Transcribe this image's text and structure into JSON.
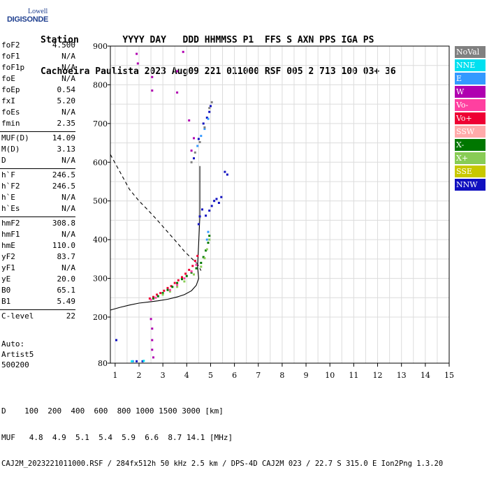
{
  "logo": {
    "line1": "Lowell",
    "line2": "DIGISONDE"
  },
  "header": {
    "line1": "Station        YYYY DAY   DDD HHMMSS P1  FFS S AXN PPS IGA PS",
    "line2": "Cachoeira Paulista 2023 Aug09 221 011000 RSF 005 2 713 100 03+ 36"
  },
  "params": [
    {
      "label": "foF2",
      "value": "4.500"
    },
    {
      "label": "foF1",
      "value": "N/A"
    },
    {
      "label": "foF1p",
      "value": "N/A"
    },
    {
      "label": "foE",
      "value": "N/A"
    },
    {
      "label": "foEp",
      "value": "0.54"
    },
    {
      "label": "fxI",
      "value": "5.20"
    },
    {
      "label": "foEs",
      "value": "N/A"
    },
    {
      "label": "fmin",
      "value": "2.35"
    },
    {
      "label": "MUF(D)",
      "value": "14.09"
    },
    {
      "label": "M(D)",
      "value": "3.13"
    },
    {
      "label": "D",
      "value": "N/A"
    },
    {
      "label": "h`F",
      "value": "246.5"
    },
    {
      "label": "h`F2",
      "value": "246.5"
    },
    {
      "label": "h`E",
      "value": "N/A"
    },
    {
      "label": "h`Es",
      "value": "N/A"
    },
    {
      "label": "hmF2",
      "value": "308.8"
    },
    {
      "label": "hmF1",
      "value": "N/A"
    },
    {
      "label": "hmE",
      "value": "110.0"
    },
    {
      "label": "yF2",
      "value": "83.7"
    },
    {
      "label": "yF1",
      "value": "N/A"
    },
    {
      "label": "yE",
      "value": "20.0"
    },
    {
      "label": "B0",
      "value": "65.1"
    },
    {
      "label": "B1",
      "value": "5.49"
    },
    {
      "label": "C-level",
      "value": "22"
    }
  ],
  "auto": {
    "line1": "Auto:",
    "line2": "Artist5",
    "line3": "500200"
  },
  "legend": [
    {
      "label": "NoVal",
      "color": "#808080"
    },
    {
      "label": "NNE",
      "color": "#00e0f0"
    },
    {
      "label": "E",
      "color": "#3399ff"
    },
    {
      "label": "W",
      "color": "#b000b0"
    },
    {
      "label": "Vo-",
      "color": "#ff40a0"
    },
    {
      "label": "Vo+",
      "color": "#ee0033"
    },
    {
      "label": "SSW",
      "color": "#ffaaaa"
    },
    {
      "label": "X-",
      "color": "#007700"
    },
    {
      "label": "X+",
      "color": "#88cc55"
    },
    {
      "label": "SSE",
      "color": "#c8c800"
    },
    {
      "label": "NNW",
      "color": "#1010c0"
    }
  ],
  "footer": {
    "line1": "D    100  200  400  600  800 1000 1500 3000 [km]",
    "line2": "MUF   4.8  4.9  5.1  5.4  5.9  6.6  8.7 14.1 [MHz]",
    "line3": "CAJ2M_2023221011000.RSF / 284fx512h 50 kHz 2.5 km / DPS-4D CAJ2M 023 / 22.7 S 315.0 E Ion2Png 1.3.20"
  },
  "chart_data": {
    "type": "scatter",
    "xlabel": "",
    "ylabel": "",
    "xlim": [
      0.8,
      15
    ],
    "ylim": [
      80,
      900
    ],
    "xticks": [
      1,
      2,
      3,
      4,
      5,
      6,
      7,
      8,
      9,
      10,
      11,
      12,
      13,
      14,
      15
    ],
    "yticks": [
      80,
      200,
      300,
      400,
      500,
      600,
      700,
      800,
      900
    ],
    "grid": true,
    "legend_position": "right",
    "series": [
      {
        "color": "#ee0033",
        "points": [
          [
            2.45,
            248
          ],
          [
            2.6,
            252
          ],
          [
            2.75,
            258
          ],
          [
            2.9,
            262
          ],
          [
            3.05,
            268
          ],
          [
            3.2,
            275
          ],
          [
            3.35,
            280
          ],
          [
            3.5,
            288
          ],
          [
            3.65,
            295
          ],
          [
            3.8,
            303
          ],
          [
            3.95,
            312
          ],
          [
            4.1,
            322
          ],
          [
            4.25,
            332
          ],
          [
            4.35,
            345
          ],
          [
            4.45,
            358
          ]
        ]
      },
      {
        "color": "#007700",
        "points": [
          [
            2.6,
            248
          ],
          [
            2.8,
            254
          ],
          [
            3.0,
            262
          ],
          [
            3.2,
            270
          ],
          [
            3.4,
            278
          ],
          [
            3.6,
            288
          ],
          [
            3.8,
            298
          ],
          [
            4.0,
            306
          ],
          [
            4.2,
            315
          ],
          [
            4.4,
            326
          ],
          [
            4.6,
            340
          ],
          [
            4.7,
            355
          ],
          [
            4.8,
            372
          ],
          [
            4.9,
            392
          ],
          [
            4.95,
            410
          ]
        ]
      },
      {
        "color": "#88cc55",
        "points": [
          [
            3.0,
            258
          ],
          [
            3.3,
            266
          ],
          [
            3.6,
            278
          ],
          [
            3.9,
            292
          ],
          [
            4.3,
            310
          ],
          [
            4.6,
            330
          ],
          [
            4.75,
            352
          ],
          [
            4.85,
            375
          ],
          [
            4.95,
            400
          ]
        ]
      },
      {
        "color": "#ff40a0",
        "points": [
          [
            2.5,
            245
          ],
          [
            2.7,
            250
          ],
          [
            3.3,
            270
          ],
          [
            3.6,
            283
          ],
          [
            3.9,
            300
          ],
          [
            4.2,
            318
          ],
          [
            4.4,
            335
          ]
        ]
      },
      {
        "color": "#1010c0",
        "points": [
          [
            4.5,
            440
          ],
          [
            4.55,
            460
          ],
          [
            4.65,
            478
          ],
          [
            4.8,
            462
          ],
          [
            4.95,
            475
          ],
          [
            5.05,
            487
          ],
          [
            5.15,
            500
          ],
          [
            5.25,
            505
          ],
          [
            5.35,
            495
          ],
          [
            5.45,
            510
          ],
          [
            5.6,
            575
          ],
          [
            5.7,
            568
          ],
          [
            4.3,
            610
          ],
          [
            4.5,
            660
          ],
          [
            4.7,
            700
          ],
          [
            4.85,
            715
          ],
          [
            4.95,
            730
          ],
          [
            5.0,
            745
          ],
          [
            1.05,
            140
          ],
          [
            1.9,
            85
          ],
          [
            2.15,
            85
          ]
        ]
      },
      {
        "color": "#b000b0",
        "points": [
          [
            1.9,
            880
          ],
          [
            1.95,
            855
          ],
          [
            2.55,
            820
          ],
          [
            2.55,
            785
          ],
          [
            3.6,
            780
          ],
          [
            3.6,
            835
          ],
          [
            3.85,
            885
          ],
          [
            4.1,
            708
          ],
          [
            4.3,
            662
          ],
          [
            4.2,
            630
          ],
          [
            2.5,
            195
          ],
          [
            2.55,
            170
          ],
          [
            2.55,
            140
          ],
          [
            2.55,
            115
          ],
          [
            2.6,
            95
          ]
        ]
      },
      {
        "color": "#3399ff",
        "points": [
          [
            4.45,
            642
          ],
          [
            4.6,
            668
          ],
          [
            4.75,
            686
          ],
          [
            4.9,
            712
          ],
          [
            1.75,
            85
          ],
          [
            4.9,
            420
          ],
          [
            4.85,
            400
          ]
        ]
      },
      {
        "color": "#00e0f0",
        "points": [
          [
            1.7,
            85
          ],
          [
            2.2,
            86
          ]
        ]
      },
      {
        "color": "#808080",
        "points": [
          [
            4.2,
            600
          ],
          [
            4.35,
            625
          ],
          [
            4.55,
            652
          ],
          [
            4.75,
            690
          ],
          [
            4.95,
            740
          ],
          [
            5.05,
            755
          ]
        ]
      }
    ],
    "curves": [
      {
        "style": "dashed",
        "points": [
          [
            0.8,
            620
          ],
          [
            1.2,
            575
          ],
          [
            1.6,
            530
          ],
          [
            2.0,
            500
          ],
          [
            2.4,
            475
          ],
          [
            2.8,
            448
          ],
          [
            3.2,
            420
          ],
          [
            3.6,
            392
          ],
          [
            3.9,
            370
          ],
          [
            4.2,
            352
          ],
          [
            4.4,
            340
          ]
        ]
      },
      {
        "style": "solid",
        "points": [
          [
            0.8,
            218
          ],
          [
            1.2,
            225
          ],
          [
            1.6,
            231
          ],
          [
            2.0,
            236
          ],
          [
            2.4,
            239
          ],
          [
            2.8,
            242
          ],
          [
            3.2,
            246
          ],
          [
            3.6,
            252
          ],
          [
            3.9,
            258
          ],
          [
            4.2,
            268
          ],
          [
            4.4,
            282
          ],
          [
            4.5,
            300
          ],
          [
            4.45,
            330
          ],
          [
            4.5,
            390
          ],
          [
            4.55,
            460
          ],
          [
            4.55,
            530
          ],
          [
            4.55,
            590
          ]
        ]
      },
      {
        "style": "dashed",
        "points": [
          [
            4.42,
            340
          ],
          [
            4.6,
            320
          ]
        ]
      }
    ]
  }
}
